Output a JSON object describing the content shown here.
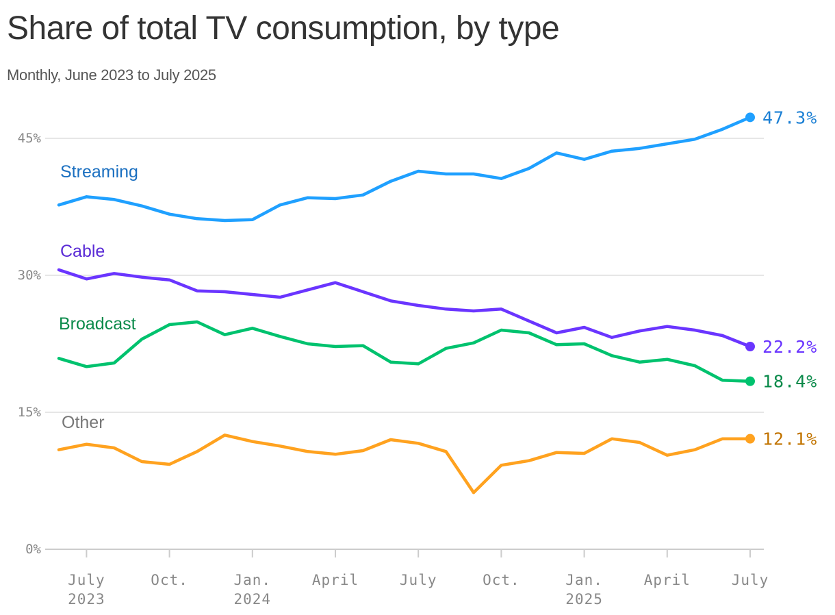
{
  "title": "Share of total TV consumption, by type",
  "subtitle": "Monthly, June 2023 to July 2025",
  "chart_data": {
    "type": "line",
    "title": "Share of total TV consumption, by type",
    "subtitle": "Monthly, June 2023 to July 2025",
    "x": [
      "2023-06",
      "2023-07",
      "2023-08",
      "2023-09",
      "2023-10",
      "2023-11",
      "2023-12",
      "2024-01",
      "2024-02",
      "2024-03",
      "2024-04",
      "2024-05",
      "2024-06",
      "2024-07",
      "2024-08",
      "2024-09",
      "2024-10",
      "2024-11",
      "2024-12",
      "2025-01",
      "2025-02",
      "2025-03",
      "2025-04",
      "2025-05",
      "2025-06",
      "2025-07"
    ],
    "ylim": [
      0,
      50
    ],
    "yticks": [
      0,
      15,
      30,
      45
    ],
    "ytick_labels": [
      "0%",
      "15%",
      "30%",
      "45%"
    ],
    "xticks": [
      {
        "x": "2023-07",
        "label": [
          "July",
          "2023"
        ]
      },
      {
        "x": "2023-10",
        "label": [
          "Oct."
        ]
      },
      {
        "x": "2024-01",
        "label": [
          "Jan.",
          "2024"
        ]
      },
      {
        "x": "2024-04",
        "label": [
          "April"
        ]
      },
      {
        "x": "2024-07",
        "label": [
          "July"
        ]
      },
      {
        "x": "2024-10",
        "label": [
          "Oct."
        ]
      },
      {
        "x": "2025-01",
        "label": [
          "Jan.",
          "2025"
        ]
      },
      {
        "x": "2025-04",
        "label": [
          "April"
        ]
      },
      {
        "x": "2025-07",
        "label": [
          "July"
        ]
      }
    ],
    "grid": true,
    "series": [
      {
        "name": "Streaming",
        "color": "#1fa0ff",
        "label_color": "#1a6fc0",
        "end_label": "47.3%",
        "end_color": "#1a7fd4",
        "values": [
          37.7,
          38.6,
          38.3,
          37.6,
          36.7,
          36.2,
          36.0,
          36.1,
          37.7,
          38.5,
          38.4,
          38.8,
          40.3,
          41.4,
          41.1,
          41.1,
          40.6,
          41.7,
          43.4,
          42.7,
          43.6,
          43.9,
          44.4,
          44.9,
          46.0,
          47.3
        ]
      },
      {
        "name": "Cable",
        "color": "#6a35ff",
        "label_color": "#5a2bd6",
        "end_label": "22.2%",
        "end_color": "#6a35ff",
        "values": [
          30.6,
          29.6,
          30.2,
          29.8,
          29.5,
          28.3,
          28.2,
          27.9,
          27.6,
          28.4,
          29.2,
          28.2,
          27.2,
          26.7,
          26.3,
          26.1,
          26.3,
          25.0,
          23.7,
          24.3,
          23.2,
          23.9,
          24.4,
          24.0,
          23.4,
          22.2
        ]
      },
      {
        "name": "Broadcast",
        "color": "#00c26e",
        "label_color": "#0a8a4a",
        "end_label": "18.4%",
        "end_color": "#0a8a4a",
        "values": [
          20.9,
          20.0,
          20.4,
          23.0,
          24.6,
          24.9,
          23.5,
          24.2,
          23.3,
          22.5,
          22.2,
          22.3,
          20.5,
          20.3,
          22.0,
          22.6,
          24.0,
          23.7,
          22.4,
          22.5,
          21.2,
          20.5,
          20.8,
          20.1,
          18.5,
          18.4
        ]
      },
      {
        "name": "Other",
        "color": "#ffa21f",
        "label_color": "#777777",
        "end_label": "12.1%",
        "end_color": "#c27400",
        "values": [
          10.9,
          11.5,
          11.1,
          9.6,
          9.3,
          10.7,
          12.5,
          11.8,
          11.3,
          10.7,
          10.4,
          10.8,
          12.0,
          11.6,
          10.7,
          6.2,
          9.2,
          9.7,
          10.6,
          10.5,
          12.1,
          11.7,
          10.3,
          10.9,
          12.1,
          12.1
        ]
      }
    ]
  }
}
